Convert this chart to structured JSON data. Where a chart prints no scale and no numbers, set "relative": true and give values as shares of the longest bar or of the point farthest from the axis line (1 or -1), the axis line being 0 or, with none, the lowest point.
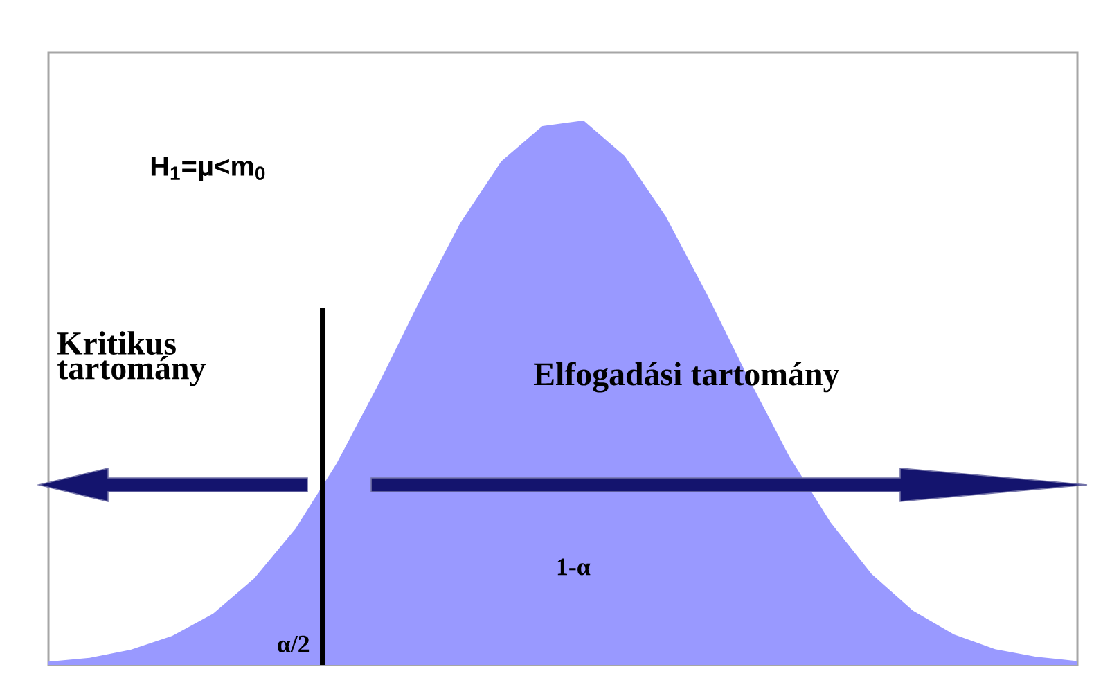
{
  "chart_data": {
    "type": "area",
    "relative": true,
    "categories": [
      null,
      null,
      null,
      null,
      null,
      null,
      null,
      null,
      null,
      null,
      null,
      null,
      null,
      null,
      null,
      null,
      null,
      null,
      null,
      null,
      null,
      null,
      null,
      null,
      null,
      null
    ],
    "values": [
      0.006,
      0.013,
      0.028,
      0.053,
      0.094,
      0.159,
      0.25,
      0.37,
      0.513,
      0.666,
      0.811,
      0.925,
      0.99,
      1.0,
      0.935,
      0.824,
      0.681,
      0.528,
      0.383,
      0.262,
      0.167,
      0.1,
      0.056,
      0.029,
      0.015,
      0.007
    ],
    "color": "#9999ff",
    "annotations": [
      "H$_{1}$=μ<m$_{0}$",
      "Kritikus tartomány",
      "Elfogadási tartomány",
      "1-α",
      "α/2"
    ]
  }
}
